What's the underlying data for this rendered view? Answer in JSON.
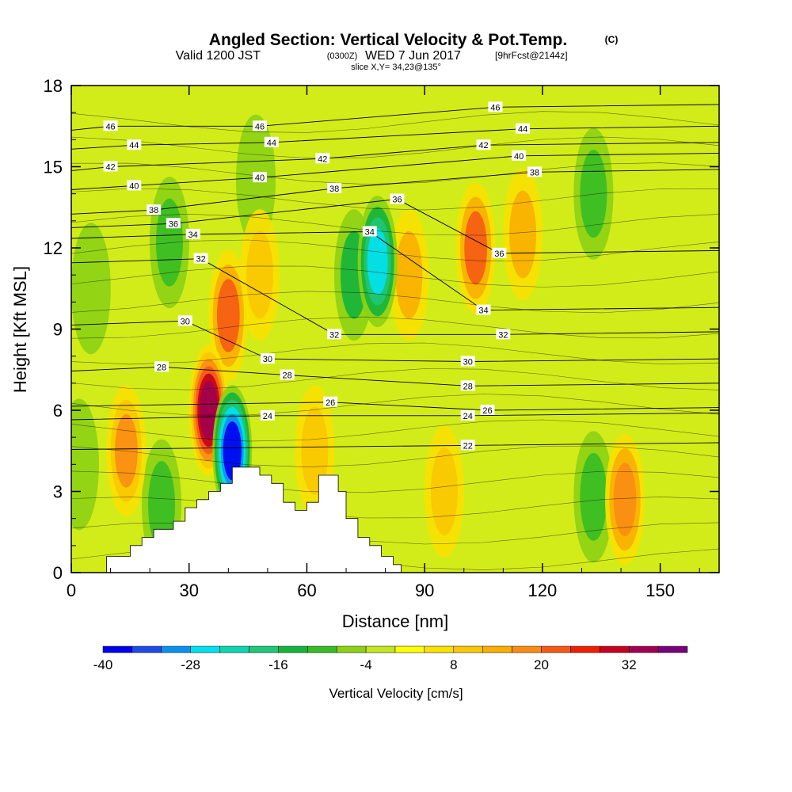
{
  "chart_data": {
    "type": "heatmap",
    "title": "Angled Section: Vertical Velocity & Pot.Temp.",
    "title_unit_tag": "(C)",
    "subtitle_valid": "Valid 1200 JST",
    "subtitle_zulu": "(0300Z)",
    "subtitle_date": "WED 7 Jun 2017",
    "subtitle_fcst": "[9hrFcst@2144z]",
    "slice_label": "slice X,Y= 34,23@135°",
    "xlabel": "Distance [nm]",
    "ylabel": "Height [Kft MSL]",
    "xlim": [
      0,
      165
    ],
    "ylim": [
      0,
      18
    ],
    "x_ticks": [
      "0",
      "30",
      "60",
      "90",
      "120",
      "150"
    ],
    "y_ticks": [
      "0",
      "3",
      "6",
      "9",
      "12",
      "15",
      "18"
    ],
    "colorbar": {
      "label": "Vertical Velocity [cm/s]",
      "tick_labels": [
        "-40",
        "-28",
        "-16",
        "-4",
        "8",
        "20",
        "32"
      ],
      "levels": [
        -40,
        -36,
        -32,
        -28,
        -24,
        -20,
        -16,
        -12,
        -8,
        -4,
        0,
        4,
        8,
        12,
        16,
        20,
        24,
        28,
        32,
        36,
        40
      ],
      "colors": [
        "#0000f0",
        "#1e4be6",
        "#0a91f0",
        "#00e1f0",
        "#0ad7af",
        "#1ec878",
        "#14b43c",
        "#37bc23",
        "#8cd214",
        "#c3e61e",
        "#ffff00",
        "#fae100",
        "#fac800",
        "#faaf00",
        "#fa8c14",
        "#f55a14",
        "#f01e00",
        "#c8001e",
        "#a00050",
        "#780078"
      ]
    },
    "pot_temp_contours": {
      "unit": "C",
      "levels": [
        22,
        24,
        26,
        28,
        30,
        32,
        34,
        36,
        38,
        40,
        42,
        44,
        46
      ],
      "labeled_values": [
        {
          "value": 46,
          "x": 10,
          "y": 16.5
        },
        {
          "value": 46,
          "x": 48,
          "y": 16.5
        },
        {
          "value": 46,
          "x": 108,
          "y": 17.2
        },
        {
          "value": 44,
          "x": 16,
          "y": 15.8
        },
        {
          "value": 44,
          "x": 51,
          "y": 15.9
        },
        {
          "value": 44,
          "x": 115,
          "y": 16.4
        },
        {
          "value": 42,
          "x": 10,
          "y": 15.0
        },
        {
          "value": 42,
          "x": 64,
          "y": 15.3
        },
        {
          "value": 42,
          "x": 105,
          "y": 15.8
        },
        {
          "value": 40,
          "x": 16,
          "y": 14.3
        },
        {
          "value": 40,
          "x": 48,
          "y": 14.6
        },
        {
          "value": 40,
          "x": 114,
          "y": 15.4
        },
        {
          "value": 38,
          "x": 21,
          "y": 13.4
        },
        {
          "value": 38,
          "x": 67,
          "y": 14.2
        },
        {
          "value": 38,
          "x": 118,
          "y": 14.8
        },
        {
          "value": 36,
          "x": 26,
          "y": 12.9
        },
        {
          "value": 36,
          "x": 83,
          "y": 13.8
        },
        {
          "value": 36,
          "x": 109,
          "y": 11.8
        },
        {
          "value": 34,
          "x": 31,
          "y": 12.5
        },
        {
          "value": 34,
          "x": 76,
          "y": 12.6
        },
        {
          "value": 34,
          "x": 105,
          "y": 9.7
        },
        {
          "value": 32,
          "x": 33,
          "y": 11.6
        },
        {
          "value": 32,
          "x": 67,
          "y": 8.8
        },
        {
          "value": 32,
          "x": 110,
          "y": 8.8
        },
        {
          "value": 30,
          "x": 29,
          "y": 9.3
        },
        {
          "value": 30,
          "x": 50,
          "y": 7.9
        },
        {
          "value": 30,
          "x": 101,
          "y": 7.8
        },
        {
          "value": 28,
          "x": 23,
          "y": 7.6
        },
        {
          "value": 28,
          "x": 55,
          "y": 7.3
        },
        {
          "value": 28,
          "x": 101,
          "y": 6.9
        },
        {
          "value": 26,
          "x": 66,
          "y": 6.3
        },
        {
          "value": 26,
          "x": 106,
          "y": 6.0
        },
        {
          "value": 24,
          "x": 50,
          "y": 5.8
        },
        {
          "value": 24,
          "x": 101,
          "y": 5.8
        },
        {
          "value": 22,
          "x": 101,
          "y": 4.7
        }
      ]
    },
    "vertical_velocity_features": [
      {
        "x": 14,
        "y": 4.5,
        "value": 16
      },
      {
        "x": 23,
        "y": 2.5,
        "value": -12
      },
      {
        "x": 35,
        "y": 6.0,
        "value": 34
      },
      {
        "x": 40,
        "y": 9.5,
        "value": 20
      },
      {
        "x": 41,
        "y": 4.5,
        "value": -38
      },
      {
        "x": 25,
        "y": 12.2,
        "value": -10
      },
      {
        "x": 47,
        "y": 14.5,
        "value": -8
      },
      {
        "x": 48,
        "y": 11.0,
        "value": 10
      },
      {
        "x": 72,
        "y": 11.0,
        "value": -14
      },
      {
        "x": 78,
        "y": 11.5,
        "value": -26
      },
      {
        "x": 103,
        "y": 12.0,
        "value": 20
      },
      {
        "x": 115,
        "y": 12.5,
        "value": 14
      },
      {
        "x": 133,
        "y": 2.8,
        "value": -12
      },
      {
        "x": 141,
        "y": 2.7,
        "value": 18
      },
      {
        "x": 133,
        "y": 14.0,
        "value": -10
      },
      {
        "x": 86,
        "y": 11.0,
        "value": 12
      },
      {
        "x": 95,
        "y": 3.0,
        "value": 10
      },
      {
        "x": 5,
        "y": 10.5,
        "value": -6
      },
      {
        "x": 2,
        "y": 4.0,
        "value": -6
      },
      {
        "x": 62,
        "y": 4.5,
        "value": 10
      }
    ],
    "terrain": [
      [
        0,
        0
      ],
      [
        9,
        0
      ],
      [
        9,
        0.6
      ],
      [
        15,
        0.6
      ],
      [
        15,
        1.0
      ],
      [
        18,
        1.0
      ],
      [
        18,
        1.3
      ],
      [
        21,
        1.3
      ],
      [
        21,
        1.6
      ],
      [
        26,
        1.6
      ],
      [
        26,
        1.9
      ],
      [
        29,
        1.9
      ],
      [
        29,
        2.4
      ],
      [
        32,
        2.4
      ],
      [
        32,
        2.7
      ],
      [
        35,
        2.7
      ],
      [
        35,
        3.0
      ],
      [
        38,
        3.0
      ],
      [
        38,
        3.3
      ],
      [
        41,
        3.3
      ],
      [
        41,
        3.9
      ],
      [
        48,
        3.9
      ],
      [
        48,
        3.6
      ],
      [
        51,
        3.6
      ],
      [
        51,
        3.3
      ],
      [
        54,
        3.3
      ],
      [
        54,
        2.6
      ],
      [
        57,
        2.6
      ],
      [
        57,
        2.3
      ],
      [
        60,
        2.3
      ],
      [
        60,
        2.6
      ],
      [
        63,
        2.6
      ],
      [
        63,
        3.6
      ],
      [
        68,
        3.6
      ],
      [
        68,
        3.0
      ],
      [
        70,
        3.0
      ],
      [
        70,
        2.0
      ],
      [
        73,
        2.0
      ],
      [
        73,
        1.3
      ],
      [
        76,
        1.3
      ],
      [
        76,
        1.0
      ],
      [
        79,
        1.0
      ],
      [
        79,
        0.6
      ],
      [
        82,
        0.6
      ],
      [
        82,
        0.3
      ],
      [
        84,
        0.3
      ],
      [
        84,
        0
      ],
      [
        165,
        0
      ]
    ]
  }
}
